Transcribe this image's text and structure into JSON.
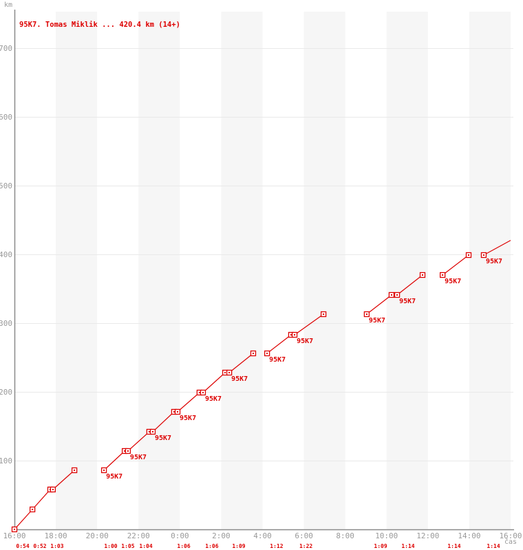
{
  "chart_data": {
    "type": "line",
    "title": "95K7. Tomas Miklik ... 420.4 km (14+)",
    "ylabel": "km",
    "xlabel": "čas",
    "series_name": "95K7",
    "total_km": "420.4",
    "laps_completed": "14+",
    "x_axis": {
      "tick_hours": [
        0,
        2,
        4,
        6,
        8,
        10,
        12,
        14,
        16,
        18,
        20,
        22,
        24
      ],
      "tick_labels": [
        "16:00",
        "18:00",
        "20:00",
        "22:00",
        "0:00",
        "2:00",
        "4:00",
        "6:00",
        "8:00",
        "10:00",
        "12:00",
        "14:00",
        "16:00"
      ],
      "range_hours": [
        0,
        24
      ]
    },
    "y_axis": {
      "ticks": [
        100,
        200,
        300,
        400,
        500,
        600,
        700
      ],
      "range_km": [
        0,
        758
      ],
      "grid": true
    },
    "shaded_bands_hours": [
      [
        2,
        4
      ],
      [
        6,
        8
      ],
      [
        10,
        12
      ],
      [
        14,
        16
      ],
      [
        18,
        20
      ],
      [
        22,
        24
      ]
    ],
    "segments": [
      {
        "points": [
          {
            "t": 0.0,
            "km": 0,
            "marker": true
          },
          {
            "t": 0.87,
            "km": 29,
            "marker": true
          },
          {
            "t": 1.73,
            "km": 58,
            "marker": true
          },
          {
            "t": 1.86,
            "km": 58,
            "marker": true
          },
          {
            "t": 2.9,
            "km": 86,
            "marker": true
          }
        ]
      },
      {
        "points": [
          {
            "t": 4.33,
            "km": 86,
            "marker": true,
            "label": "95K7"
          },
          {
            "t": 5.33,
            "km": 114,
            "marker": true
          },
          {
            "t": 5.49,
            "km": 114,
            "marker": true,
            "label": "95K7"
          },
          {
            "t": 6.52,
            "km": 142,
            "marker": true
          },
          {
            "t": 6.69,
            "km": 142,
            "marker": true,
            "label": "95K7"
          },
          {
            "t": 7.72,
            "km": 171,
            "marker": true
          },
          {
            "t": 7.89,
            "km": 171,
            "marker": true,
            "label": "95K7"
          },
          {
            "t": 8.95,
            "km": 199,
            "marker": true
          },
          {
            "t": 9.12,
            "km": 199,
            "marker": true,
            "label": "95K7"
          },
          {
            "t": 10.19,
            "km": 228,
            "marker": true
          },
          {
            "t": 10.39,
            "km": 228,
            "marker": true,
            "label": "95K7"
          },
          {
            "t": 11.55,
            "km": 256,
            "marker": true
          }
        ]
      },
      {
        "points": [
          {
            "t": 12.22,
            "km": 256,
            "marker": true,
            "label": "95K7"
          },
          {
            "t": 13.38,
            "km": 283,
            "marker": true
          },
          {
            "t": 13.55,
            "km": 283,
            "marker": true,
            "label": "95K7"
          },
          {
            "t": 14.95,
            "km": 313,
            "marker": true
          }
        ]
      },
      {
        "points": [
          {
            "t": 17.04,
            "km": 313,
            "marker": true,
            "label": "95K7"
          },
          {
            "t": 18.24,
            "km": 341,
            "marker": true
          },
          {
            "t": 18.51,
            "km": 341,
            "marker": true,
            "label": "95K7"
          },
          {
            "t": 19.74,
            "km": 370,
            "marker": true
          }
        ]
      },
      {
        "points": [
          {
            "t": 20.71,
            "km": 370,
            "marker": true,
            "label": "95K7"
          },
          {
            "t": 21.97,
            "km": 399,
            "marker": true
          }
        ]
      },
      {
        "points": [
          {
            "t": 22.7,
            "km": 399,
            "marker": true,
            "label": "95K7"
          },
          {
            "t": 24.0,
            "km": 420.4,
            "marker": false
          }
        ]
      }
    ],
    "lap_times": [
      {
        "t": 0.4,
        "label": "0:54"
      },
      {
        "t": 1.23,
        "label": "0:52"
      },
      {
        "t": 2.06,
        "label": "1:03"
      },
      {
        "t": 4.66,
        "label": "1:00"
      },
      {
        "t": 5.49,
        "label": "1:05"
      },
      {
        "t": 6.36,
        "label": "1:04"
      },
      {
        "t": 8.19,
        "label": "1:06"
      },
      {
        "t": 9.55,
        "label": "1:06"
      },
      {
        "t": 10.85,
        "label": "1:09"
      },
      {
        "t": 12.68,
        "label": "1:12"
      },
      {
        "t": 14.1,
        "label": "1:22"
      },
      {
        "t": 17.71,
        "label": "1:09"
      },
      {
        "t": 19.04,
        "label": "1:14"
      },
      {
        "t": 21.27,
        "label": "1:14"
      },
      {
        "t": 23.17,
        "label": "1:14"
      }
    ],
    "colors": {
      "series": "#dd0000",
      "axis": "#8a8a8a",
      "tick_text": "#999999",
      "grid": "#e9e9e9",
      "band": "#f6f6f6",
      "background": "#ffffff"
    }
  }
}
